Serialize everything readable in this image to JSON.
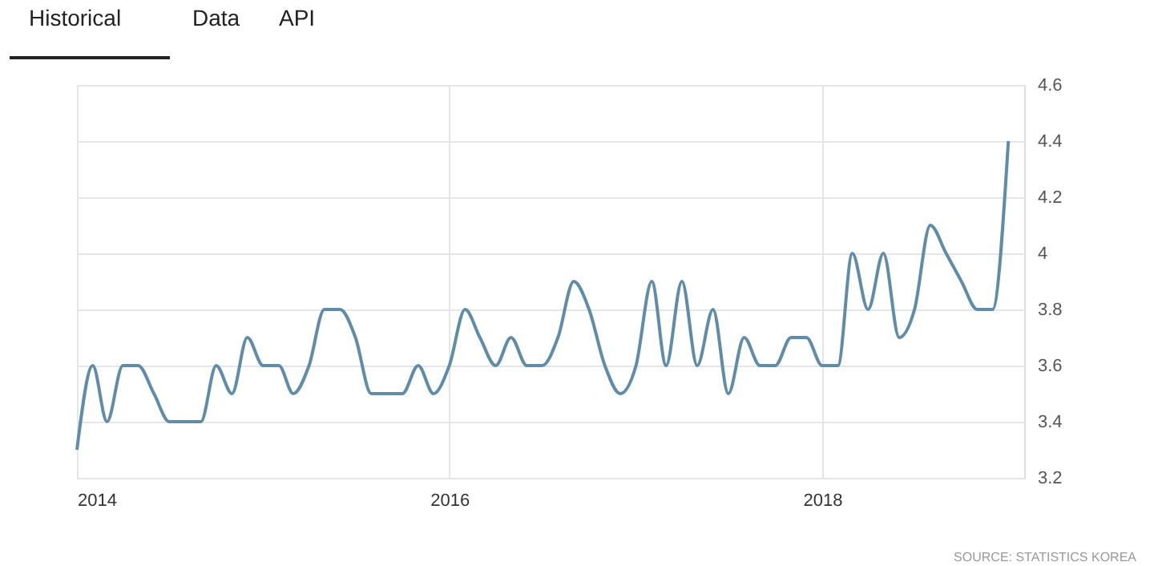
{
  "chart_data": {
    "type": "line",
    "annotations": [
      "Historical",
      "Data",
      "API",
      "SOURCE: STATISTICS KOREA"
    ],
    "x": [
      "2014-01",
      "2014-02",
      "2014-03",
      "2014-04",
      "2014-05",
      "2014-06",
      "2014-07",
      "2014-08",
      "2014-09",
      "2014-10",
      "2014-11",
      "2014-12",
      "2015-01",
      "2015-02",
      "2015-03",
      "2015-04",
      "2015-05",
      "2015-06",
      "2015-07",
      "2015-08",
      "2015-09",
      "2015-10",
      "2015-11",
      "2015-12",
      "2016-01",
      "2016-02",
      "2016-03",
      "2016-04",
      "2016-05",
      "2016-06",
      "2016-07",
      "2016-08",
      "2016-09",
      "2016-10",
      "2016-11",
      "2016-12",
      "2017-01",
      "2017-02",
      "2017-03",
      "2017-04",
      "2017-05",
      "2017-06",
      "2017-07",
      "2017-08",
      "2017-09",
      "2017-10",
      "2017-11",
      "2017-12",
      "2018-01",
      "2018-02",
      "2018-03",
      "2018-04",
      "2018-05",
      "2018-06",
      "2018-07",
      "2018-08",
      "2018-09",
      "2018-10",
      "2018-11",
      "2018-12",
      "2019-01"
    ],
    "series": [
      {
        "color": "#5f8ca8",
        "values": [
          3.3,
          3.6,
          3.4,
          3.6,
          3.6,
          3.5,
          3.4,
          3.4,
          3.4,
          3.6,
          3.5,
          3.7,
          3.6,
          3.6,
          3.5,
          3.6,
          3.8,
          3.8,
          3.7,
          3.5,
          3.5,
          3.5,
          3.6,
          3.5,
          3.6,
          3.8,
          3.7,
          3.6,
          3.7,
          3.6,
          3.6,
          3.7,
          3.9,
          3.8,
          3.6,
          3.5,
          3.6,
          3.9,
          3.6,
          3.9,
          3.6,
          3.8,
          3.5,
          3.7,
          3.6,
          3.6,
          3.7,
          3.7,
          3.6,
          3.6,
          4.0,
          3.8,
          4.0,
          3.7,
          3.8,
          4.1,
          4.0,
          3.9,
          3.8,
          3.8,
          4.4
        ]
      }
    ],
    "xlim": [
      "2014-01",
      "2019-02"
    ],
    "xticks": [
      {
        "value": "2014-01",
        "label": "2014"
      },
      {
        "value": "2016-01",
        "label": "2016"
      },
      {
        "value": "2018-01",
        "label": "2018"
      }
    ],
    "ylim": [
      3.2,
      4.6
    ],
    "yticks": [
      3.2,
      3.4,
      3.6,
      3.8,
      4,
      4.2,
      4.4,
      4.6
    ],
    "grid": true,
    "marker": "none",
    "line_style": "solid"
  }
}
